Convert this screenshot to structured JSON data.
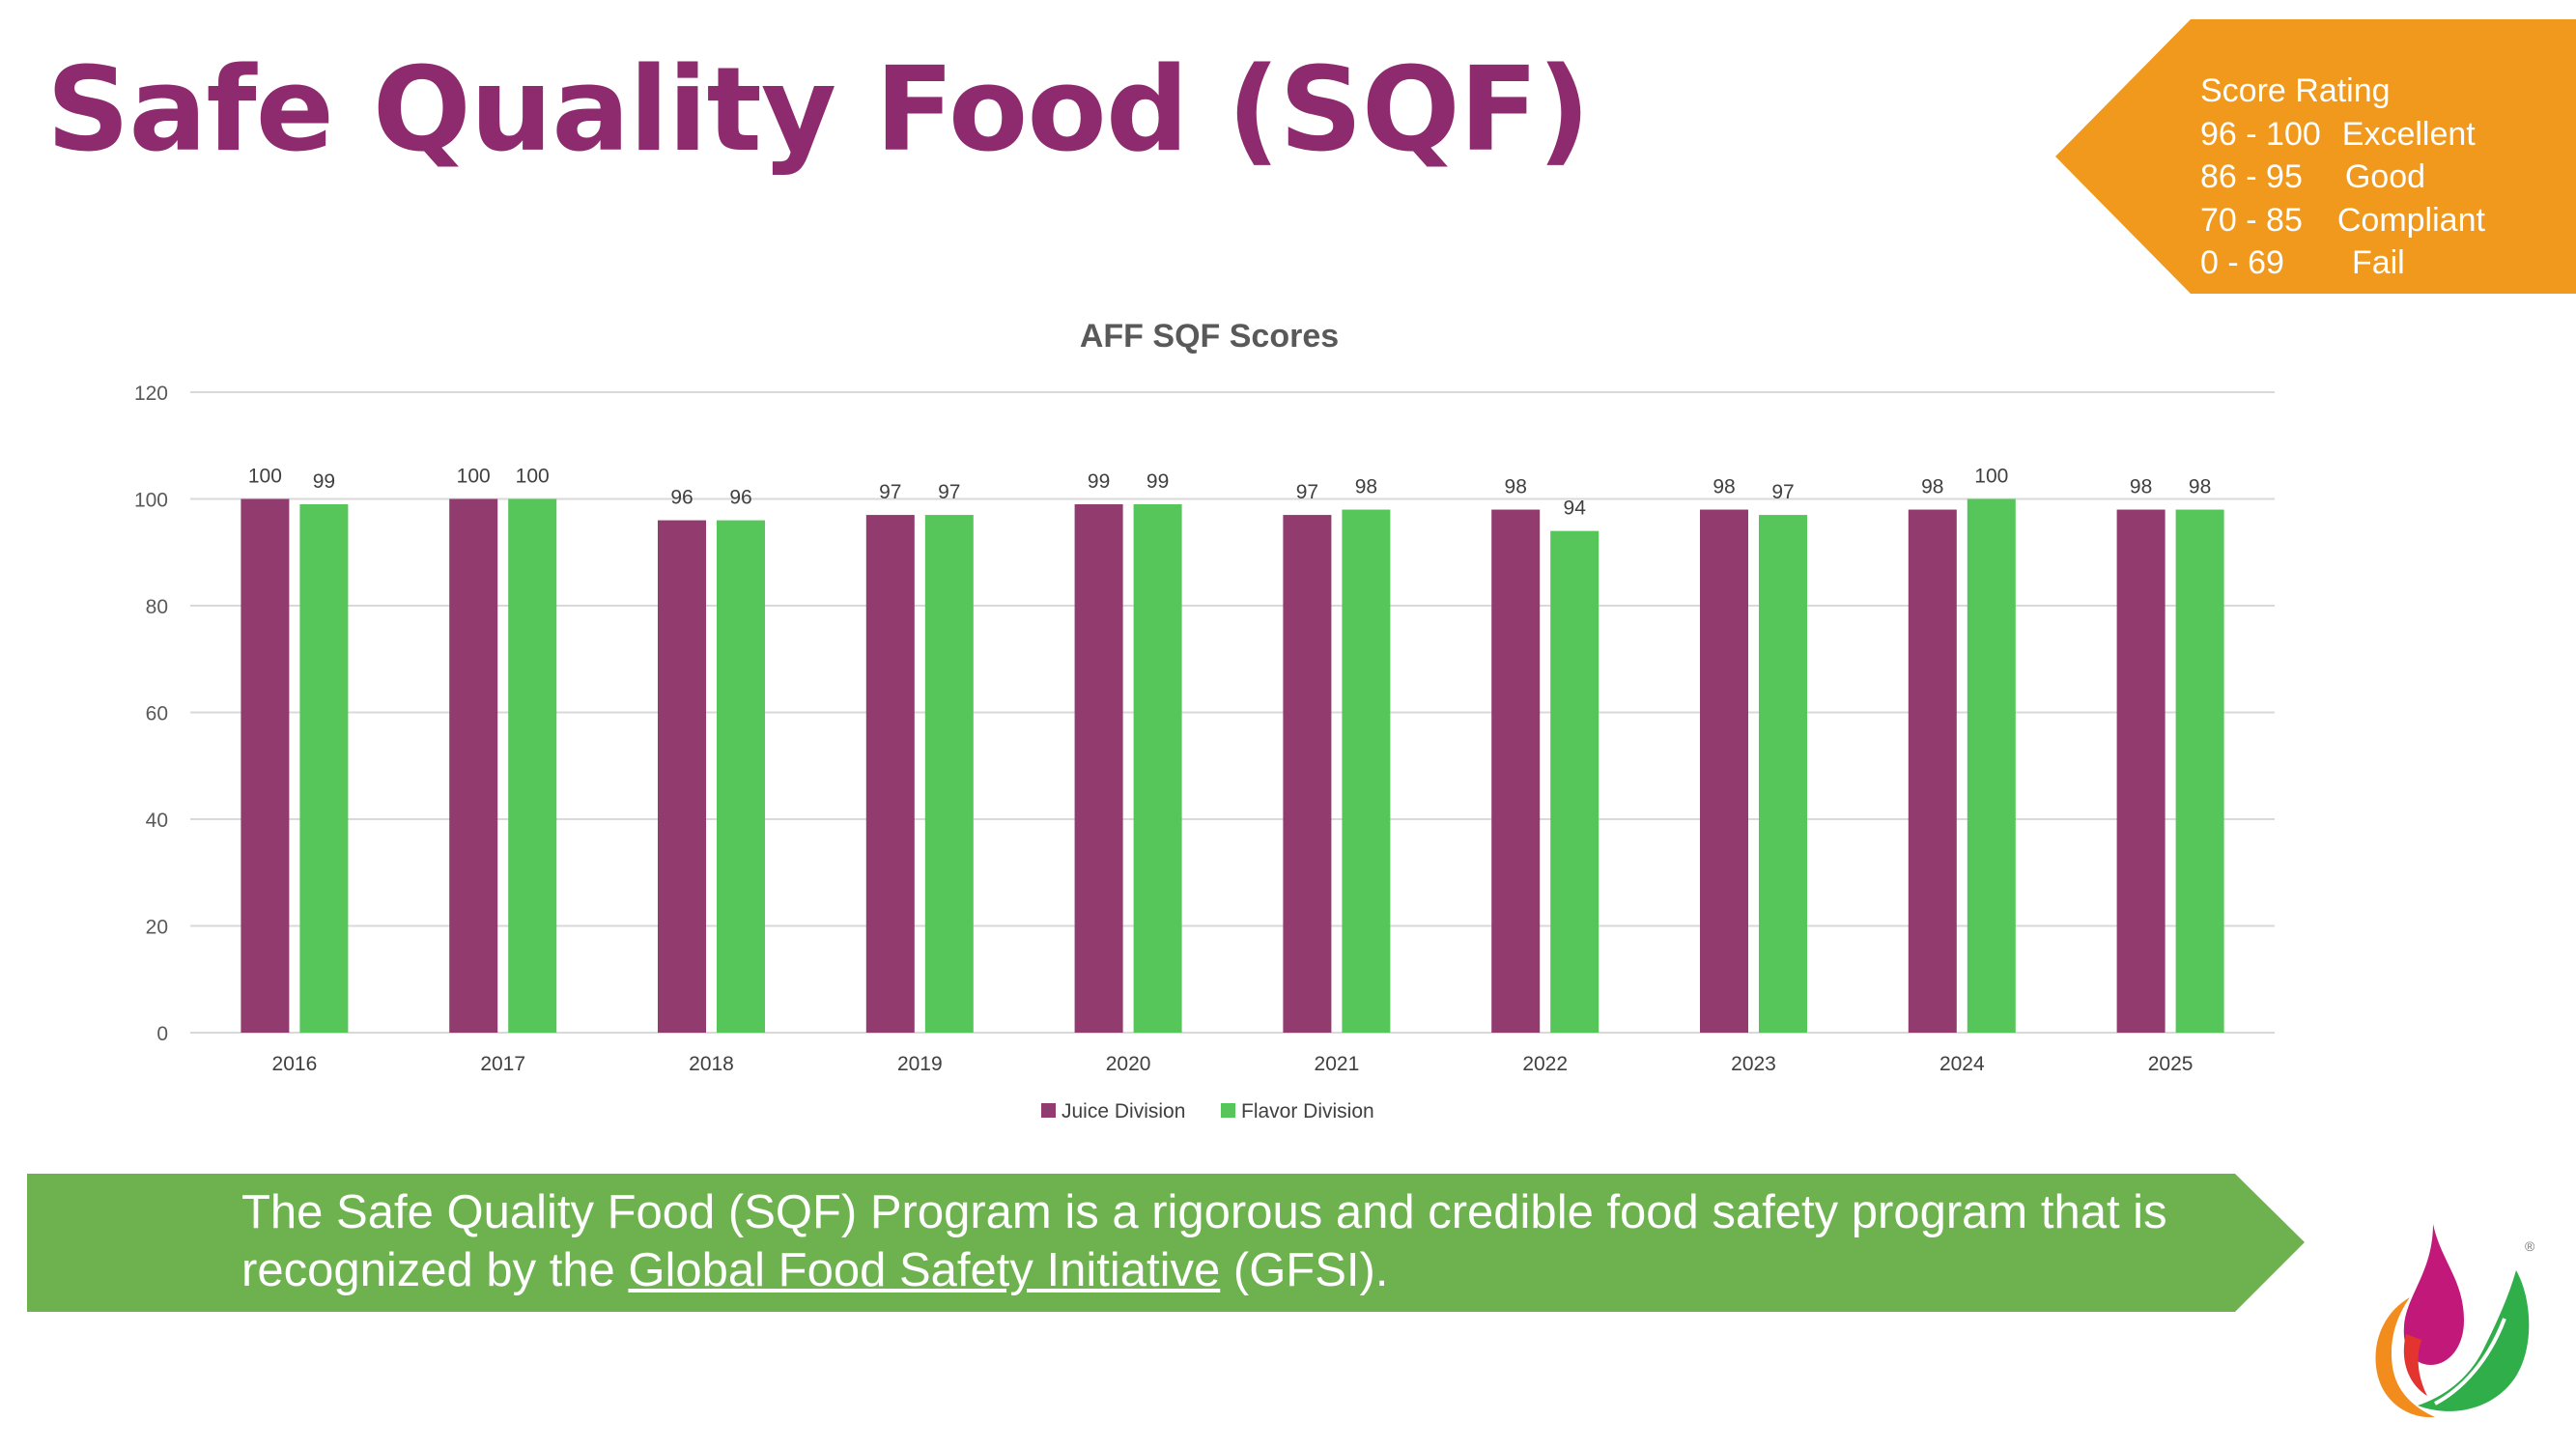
{
  "page": {
    "title": "Safe Quality Food (SQF)"
  },
  "score_rating": {
    "heading": "Score Rating",
    "rows": [
      {
        "range": "96 - 100",
        "label": "Excellent"
      },
      {
        "range": "86 - 95",
        "label": "Good"
      },
      {
        "range": "70 - 85",
        "label": "Compliant"
      },
      {
        "range": "0 - 69",
        "label": "Fail"
      }
    ],
    "color": "#f0991c"
  },
  "chart_data": {
    "type": "bar",
    "title": "AFF SQF Scores",
    "xlabel": "",
    "ylabel": "",
    "categories": [
      "2016",
      "2017",
      "2018",
      "2019",
      "2020",
      "2021",
      "2022",
      "2023",
      "2024",
      "2025"
    ],
    "series": [
      {
        "name": "Juice Division",
        "color": "#913b6f",
        "values": [
          100,
          100,
          96,
          97,
          99,
          97,
          98,
          98,
          98,
          98
        ]
      },
      {
        "name": "Flavor Division",
        "color": "#56c65a",
        "values": [
          99,
          100,
          96,
          97,
          99,
          98,
          94,
          97,
          100,
          98
        ]
      }
    ],
    "ylim": [
      0,
      120
    ],
    "yticks": [
      0,
      20,
      40,
      60,
      80,
      100,
      120
    ],
    "grid": true,
    "legend": "bottom-center"
  },
  "banner": {
    "text_before": "The Safe Quality Food (SQF) Program is a rigorous and credible food safety program that is recognized by the ",
    "link_text": "Global Food Safety Initiative",
    "text_after": " (GFSI).",
    "color": "#6eb24f"
  },
  "logo": {
    "registered_mark": "®",
    "colors": [
      "#c2187a",
      "#f28c1c",
      "#e3342f",
      "#2fae4a"
    ]
  }
}
